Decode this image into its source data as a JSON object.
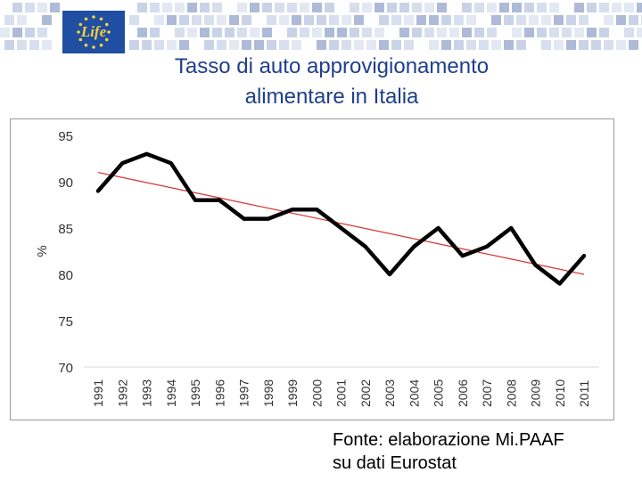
{
  "title_line1": "Tasso di auto approvigionamento",
  "title_line2": "alimentare in Italia",
  "logo_text": "Life",
  "source_line1": "Fonte: elaborazione Mi.PAAF",
  "source_line2": "su dati Eurostat",
  "colors": {
    "title": "#1f3f8a",
    "banner_blue": "#1f4ea3",
    "banner_tiles": [
      "#c9d3e8",
      "#aebbd8",
      "#e3e8f3",
      "#d7deee"
    ],
    "series_line": "#000000",
    "trend_line": "#d9302c"
  },
  "chart_data": {
    "type": "line",
    "title": "",
    "xlabel": "",
    "ylabel": "%",
    "ylim": [
      70,
      95
    ],
    "yticks": [
      95,
      90,
      85,
      80,
      75,
      70
    ],
    "grid": false,
    "x": [
      "1991",
      "1992",
      "1993",
      "1994",
      "1995",
      "1996",
      "1997",
      "1998",
      "1999",
      "2000",
      "2001",
      "2002",
      "2003",
      "2004",
      "2005",
      "2006",
      "2007",
      "2008",
      "2009",
      "2010",
      "2011"
    ],
    "series": [
      {
        "values": [
          89,
          92,
          93,
          92,
          88,
          88,
          86,
          86,
          87,
          87,
          85,
          83,
          80,
          83,
          85,
          82,
          83,
          85,
          81,
          79,
          82
        ]
      }
    ],
    "trendline": {
      "type": "linear",
      "from": 91,
      "to": 80
    }
  }
}
